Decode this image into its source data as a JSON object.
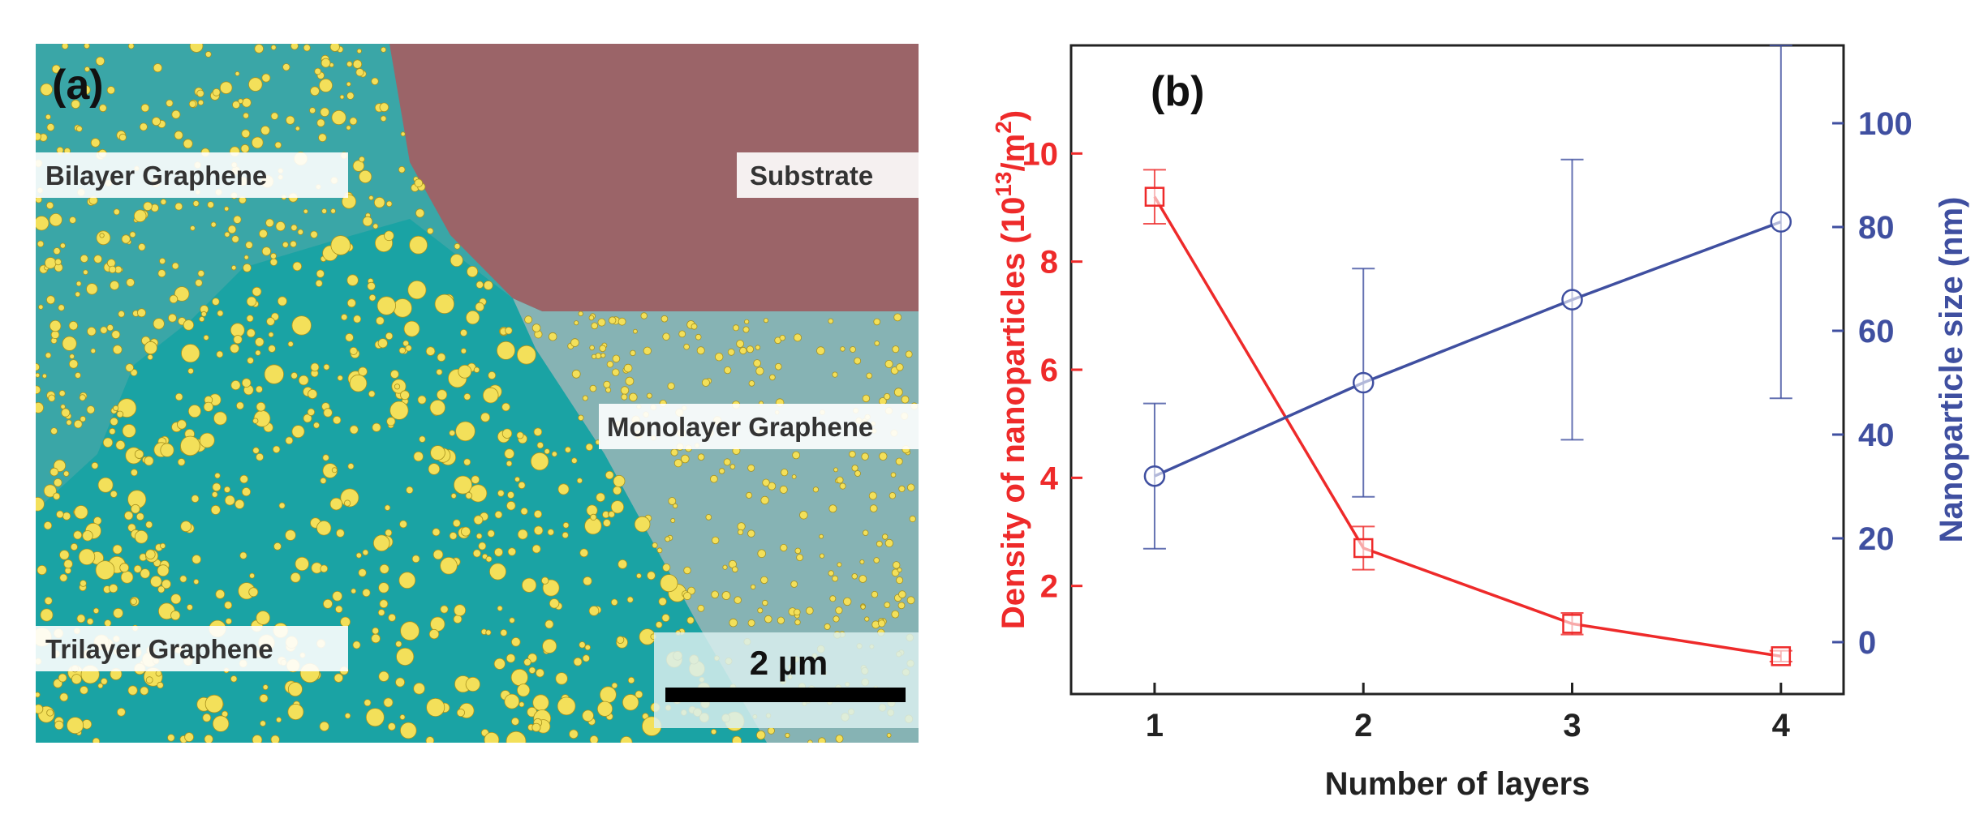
{
  "panel_a": {
    "label": "(a)",
    "regions": {
      "bilayer": "Bilayer Graphene",
      "substrate": "Substrate",
      "monolayer": "Monolayer Graphene",
      "trilayer": "Trilayer Graphene"
    },
    "scale_bar": "2 µm",
    "colors": {
      "substrate": "#9b6468",
      "bilayer": "#3aa6a7",
      "trilayer": "#1aa3a4",
      "monolayer": "#86b3b4",
      "particle": "#f3e05a"
    }
  },
  "chart_data": {
    "type": "line",
    "panel_label": "(b)",
    "xlabel": "Number of layers",
    "x": [
      1,
      2,
      3,
      4
    ],
    "xlim": [
      0.6,
      4.3
    ],
    "x_ticks": [
      1,
      2,
      3,
      4
    ],
    "y_left": {
      "label_prefix": "Density of nanoparticles (10",
      "label_sup1": "13",
      "label_mid": "/m",
      "label_sup2": "2",
      "label_suffix": ")",
      "ylim": [
        0,
        12
      ],
      "ticks": [
        2,
        4,
        6,
        8,
        10
      ],
      "color": "#ee2a2a"
    },
    "y_right": {
      "label": "Nanoparticle size (nm)",
      "ylim": [
        -10,
        115
      ],
      "ticks": [
        0,
        20,
        40,
        60,
        80,
        100
      ],
      "color": "#3f4fa0"
    },
    "series": [
      {
        "name": "Density of nanoparticles",
        "axis": "left",
        "marker": "square",
        "color": "#ee2a2a",
        "values": [
          9.2,
          2.7,
          1.3,
          0.7
        ],
        "errors": [
          0.5,
          0.4,
          0.2,
          0.1
        ]
      },
      {
        "name": "Nanoparticle size",
        "axis": "right",
        "marker": "circle",
        "color": "#3f4fa0",
        "values": [
          32,
          50,
          66,
          81
        ],
        "errors": [
          14,
          22,
          27,
          34
        ]
      }
    ]
  }
}
